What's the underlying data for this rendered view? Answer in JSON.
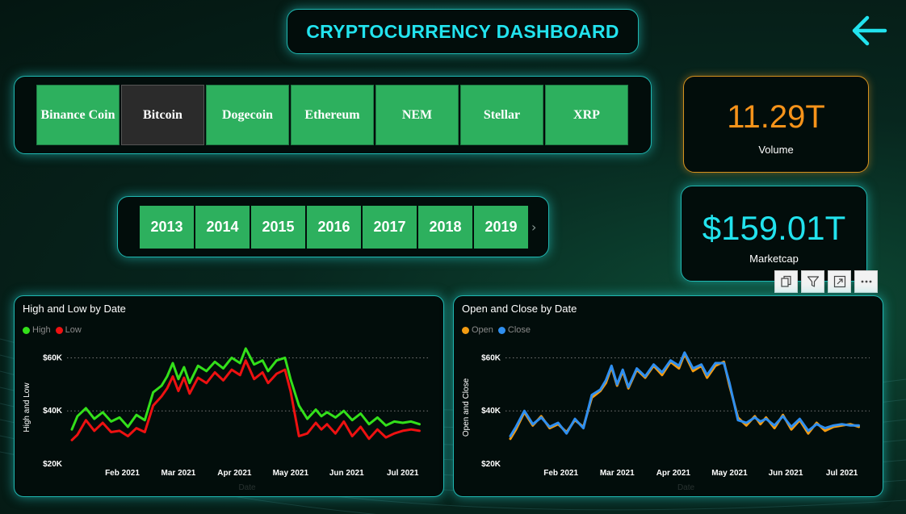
{
  "header": {
    "title": "CRYPTOCURRENCY DASHBOARD"
  },
  "coins": [
    {
      "label": "Binance Coin",
      "active": false
    },
    {
      "label": "Bitcoin",
      "active": true
    },
    {
      "label": "Dogecoin",
      "active": false
    },
    {
      "label": "Ethereum",
      "active": false
    },
    {
      "label": "NEM",
      "active": false
    },
    {
      "label": "Stellar",
      "active": false
    },
    {
      "label": "XRP",
      "active": false
    }
  ],
  "years": [
    "2013",
    "2014",
    "2015",
    "2016",
    "2017",
    "2018",
    "2019"
  ],
  "kpis": {
    "volume": {
      "value": "11.29T",
      "label": "Volume"
    },
    "marketcap": {
      "value": "$159.01T",
      "label": "Marketcap"
    }
  },
  "colors": {
    "accent": "#22e3ee",
    "button_green": "#2db05e",
    "volume_orange": "#f7931a",
    "high": "#33e01a",
    "low": "#ee1111",
    "open": "#f39c12",
    "close": "#2f8ff0"
  },
  "icons": {
    "back": "arrow-left-icon",
    "copy": "copy-icon",
    "filter": "filter-icon",
    "focus": "focus-mode-icon",
    "more": "more-options-icon"
  },
  "chart_data": [
    {
      "type": "line",
      "title": "High and Low by Date",
      "xlabel": "Date",
      "ylabel": "High and Low",
      "ylim": [
        20000,
        65000
      ],
      "yticks": [
        20000,
        40000,
        60000
      ],
      "ytick_labels": [
        "$20K",
        "$40K",
        "$60K"
      ],
      "xtick_labels": [
        "Feb 2021",
        "Mar 2021",
        "Apr 2021",
        "May 2021",
        "Jun 2021",
        "Jul 2021"
      ],
      "xtick_positions": [
        1,
        2,
        3,
        4,
        5,
        6
      ],
      "xlim": [
        0.1,
        6.35
      ],
      "grid": true,
      "legend": "top-left",
      "series": [
        {
          "name": "High",
          "color": "#33e01a",
          "x": [
            0.1,
            0.2,
            0.35,
            0.5,
            0.65,
            0.8,
            0.95,
            1.1,
            1.25,
            1.4,
            1.55,
            1.7,
            1.8,
            1.9,
            2.0,
            2.1,
            2.2,
            2.35,
            2.5,
            2.65,
            2.8,
            2.95,
            3.1,
            3.2,
            3.35,
            3.5,
            3.6,
            3.75,
            3.9,
            4.0,
            4.15,
            4.3,
            4.45,
            4.55,
            4.65,
            4.8,
            4.95,
            5.1,
            5.25,
            5.4,
            5.55,
            5.7,
            5.85,
            6.0,
            6.15,
            6.3
          ],
          "values": [
            33000,
            38000,
            41000,
            37000,
            39500,
            36000,
            37500,
            34000,
            38500,
            36500,
            47000,
            49500,
            53000,
            58000,
            52000,
            56500,
            50500,
            57000,
            55000,
            58500,
            56000,
            60000,
            58000,
            63500,
            57500,
            59000,
            55000,
            59000,
            60000,
            52000,
            42000,
            37000,
            40500,
            38000,
            39500,
            37500,
            40000,
            36500,
            39000,
            35000,
            37500,
            34500,
            36000,
            35500,
            36000,
            35000
          ]
        },
        {
          "name": "Low",
          "color": "#ee1111",
          "x": [
            0.1,
            0.2,
            0.35,
            0.5,
            0.65,
            0.8,
            0.95,
            1.1,
            1.25,
            1.4,
            1.55,
            1.7,
            1.8,
            1.9,
            2.0,
            2.1,
            2.2,
            2.35,
            2.5,
            2.65,
            2.8,
            2.95,
            3.1,
            3.2,
            3.35,
            3.5,
            3.6,
            3.75,
            3.9,
            4.0,
            4.15,
            4.3,
            4.45,
            4.55,
            4.65,
            4.8,
            4.95,
            5.1,
            5.25,
            5.4,
            5.55,
            5.7,
            5.85,
            6.0,
            6.15,
            6.3
          ],
          "values": [
            29000,
            31000,
            36500,
            32500,
            35500,
            32000,
            32500,
            30500,
            33500,
            32000,
            42000,
            45500,
            48500,
            53000,
            47500,
            52500,
            46500,
            52500,
            50500,
            54500,
            51500,
            55500,
            53500,
            59000,
            52000,
            54500,
            50500,
            54000,
            55500,
            47500,
            30500,
            31500,
            35500,
            33000,
            35000,
            31500,
            36000,
            30500,
            34000,
            29500,
            33000,
            30000,
            31500,
            32500,
            33000,
            32500
          ]
        }
      ]
    },
    {
      "type": "line",
      "title": "Open and Close by Date",
      "xlabel": "Date",
      "ylabel": "Open and Close",
      "ylim": [
        20000,
        65000
      ],
      "yticks": [
        20000,
        40000,
        60000
      ],
      "ytick_labels": [
        "$20K",
        "$40K",
        "$60K"
      ],
      "xtick_labels": [
        "Feb 2021",
        "Mar 2021",
        "Apr 2021",
        "May 2021",
        "Jun 2021",
        "Jul 2021"
      ],
      "xtick_positions": [
        1,
        2,
        3,
        4,
        5,
        6
      ],
      "xlim": [
        0.1,
        6.35
      ],
      "grid": true,
      "legend": "top-left",
      "series": [
        {
          "name": "Open",
          "color": "#f39c12",
          "x": [
            0.1,
            0.2,
            0.35,
            0.5,
            0.65,
            0.8,
            0.95,
            1.1,
            1.25,
            1.4,
            1.55,
            1.7,
            1.8,
            1.9,
            2.0,
            2.1,
            2.2,
            2.35,
            2.5,
            2.65,
            2.8,
            2.95,
            3.1,
            3.2,
            3.35,
            3.5,
            3.6,
            3.75,
            3.9,
            4.0,
            4.15,
            4.3,
            4.45,
            4.55,
            4.65,
            4.8,
            4.95,
            5.1,
            5.25,
            5.4,
            5.55,
            5.7,
            5.85,
            6.0,
            6.15,
            6.3
          ],
          "values": [
            29500,
            33000,
            39500,
            34500,
            38000,
            33500,
            35000,
            32000,
            36500,
            34000,
            45000,
            47500,
            50500,
            56500,
            49500,
            55000,
            48500,
            55500,
            52500,
            57000,
            53500,
            58500,
            56000,
            61500,
            55000,
            57000,
            52500,
            57000,
            58500,
            49500,
            37500,
            34500,
            38000,
            35000,
            37500,
            33500,
            38500,
            33000,
            36500,
            31500,
            35500,
            32500,
            34000,
            34500,
            35000,
            34000
          ]
        },
        {
          "name": "Close",
          "color": "#2f8ff0",
          "x": [
            0.1,
            0.2,
            0.35,
            0.5,
            0.65,
            0.8,
            0.95,
            1.1,
            1.25,
            1.4,
            1.55,
            1.7,
            1.8,
            1.9,
            2.0,
            2.1,
            2.2,
            2.35,
            2.5,
            2.65,
            2.8,
            2.95,
            3.1,
            3.2,
            3.35,
            3.5,
            3.6,
            3.75,
            3.9,
            4.0,
            4.15,
            4.3,
            4.45,
            4.55,
            4.65,
            4.8,
            4.95,
            5.1,
            5.25,
            5.4,
            5.55,
            5.7,
            5.85,
            6.0,
            6.15,
            6.3
          ],
          "values": [
            30500,
            34000,
            40000,
            35000,
            37500,
            34000,
            35500,
            31500,
            37000,
            33500,
            46000,
            48000,
            51500,
            57000,
            50000,
            55500,
            49000,
            56000,
            53000,
            57500,
            54500,
            59000,
            57000,
            62000,
            56000,
            57500,
            53500,
            58000,
            58000,
            50500,
            36500,
            35500,
            37500,
            36000,
            37000,
            34500,
            38000,
            34000,
            37000,
            32500,
            35000,
            33500,
            34500,
            35000,
            34500,
            34500
          ]
        }
      ]
    }
  ]
}
